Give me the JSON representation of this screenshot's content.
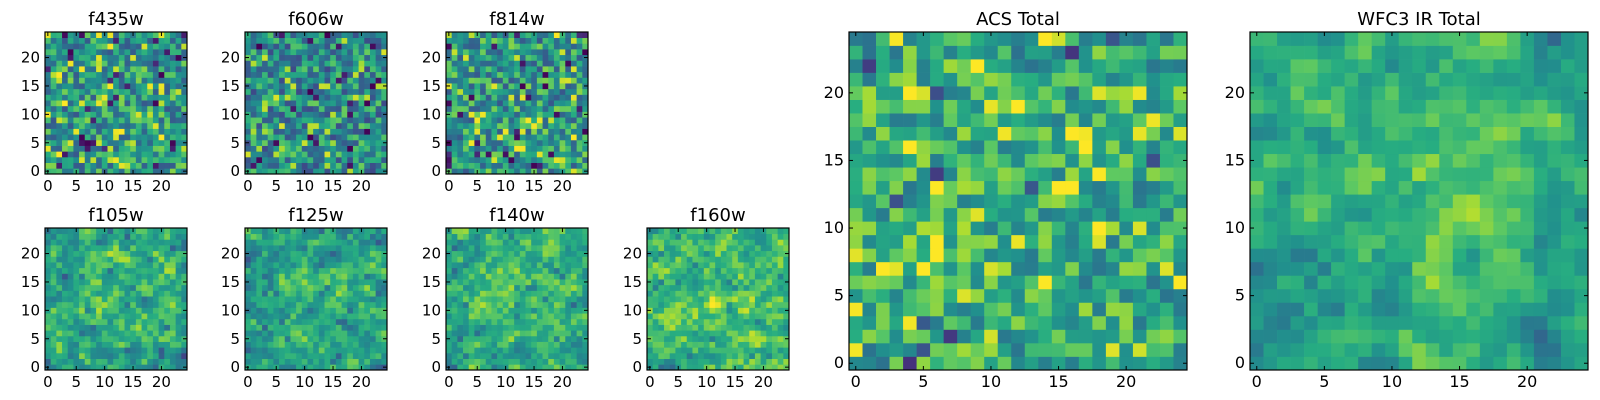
{
  "chart_data": [
    {
      "type": "heatmap",
      "title": "f435w",
      "xticks": [
        "0",
        "5",
        "10",
        "15",
        "20"
      ],
      "yticks": [
        "0",
        "5",
        "10",
        "15",
        "20"
      ],
      "xlim": [
        0,
        25
      ],
      "ylim": [
        0,
        25
      ],
      "colormap": "viridis"
    },
    {
      "type": "heatmap",
      "title": "f606w",
      "xticks": [
        "0",
        "5",
        "10",
        "15",
        "20"
      ],
      "yticks": [
        "0",
        "5",
        "10",
        "15",
        "20"
      ],
      "xlim": [
        0,
        25
      ],
      "ylim": [
        0,
        25
      ],
      "colormap": "viridis"
    },
    {
      "type": "heatmap",
      "title": "f814w",
      "xticks": [
        "0",
        "5",
        "10",
        "15",
        "20"
      ],
      "yticks": [
        "0",
        "5",
        "10",
        "15",
        "20"
      ],
      "xlim": [
        0,
        25
      ],
      "ylim": [
        0,
        25
      ],
      "colormap": "viridis"
    },
    {
      "type": "heatmap",
      "title": "f105w",
      "xticks": [
        "0",
        "5",
        "10",
        "15",
        "20"
      ],
      "yticks": [
        "0",
        "5",
        "10",
        "15",
        "20"
      ],
      "xlim": [
        0,
        25
      ],
      "ylim": [
        0,
        25
      ],
      "colormap": "viridis"
    },
    {
      "type": "heatmap",
      "title": "f125w",
      "xticks": [
        "0",
        "5",
        "10",
        "15",
        "20"
      ],
      "yticks": [
        "0",
        "5",
        "10",
        "15",
        "20"
      ],
      "xlim": [
        0,
        25
      ],
      "ylim": [
        0,
        25
      ],
      "colormap": "viridis"
    },
    {
      "type": "heatmap",
      "title": "f140w",
      "xticks": [
        "0",
        "5",
        "10",
        "15",
        "20"
      ],
      "yticks": [
        "0",
        "5",
        "10",
        "15",
        "20"
      ],
      "xlim": [
        0,
        25
      ],
      "ylim": [
        0,
        25
      ],
      "colormap": "viridis"
    },
    {
      "type": "heatmap",
      "title": "f160w",
      "xticks": [
        "0",
        "5",
        "10",
        "15",
        "20"
      ],
      "yticks": [
        "0",
        "5",
        "10",
        "15",
        "20"
      ],
      "xlim": [
        0,
        25
      ],
      "ylim": [
        0,
        25
      ],
      "colormap": "viridis"
    },
    {
      "type": "heatmap",
      "title": "ACS Total",
      "xticks": [
        "0",
        "5",
        "10",
        "15",
        "20"
      ],
      "yticks": [
        "0",
        "5",
        "10",
        "15",
        "20"
      ],
      "xlim": [
        0,
        25
      ],
      "ylim": [
        0,
        25
      ],
      "colormap": "viridis"
    },
    {
      "type": "heatmap",
      "title": "WFC3 IR Total",
      "xticks": [
        "0",
        "5",
        "10",
        "15",
        "20"
      ],
      "yticks": [
        "0",
        "5",
        "10",
        "15",
        "20"
      ],
      "xlim": [
        0,
        25
      ],
      "ylim": [
        0,
        25
      ],
      "colormap": "viridis"
    }
  ]
}
